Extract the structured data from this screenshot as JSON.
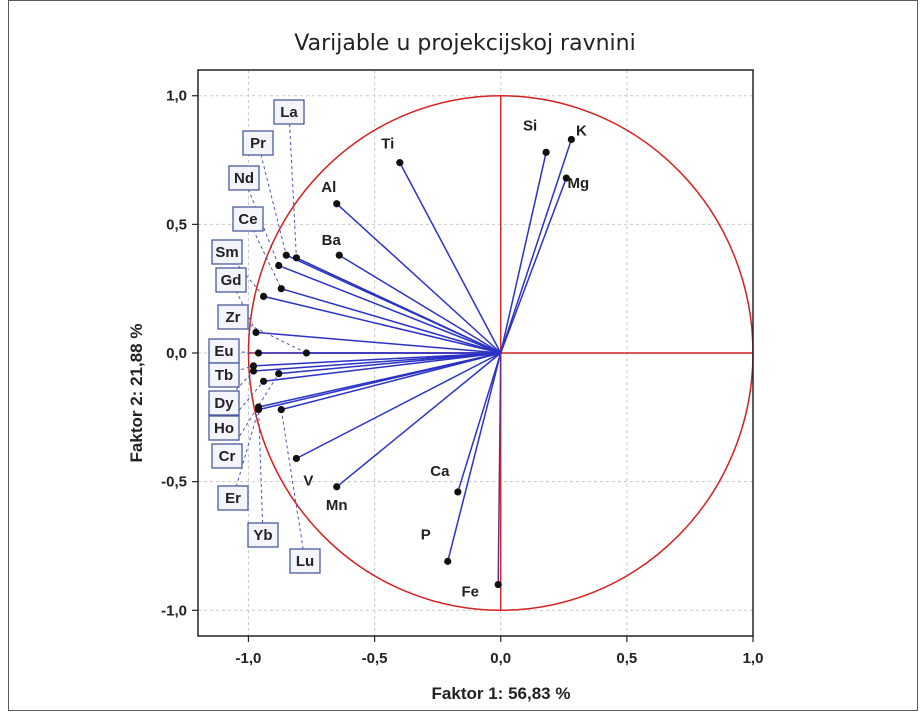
{
  "chart_data": {
    "type": "scatter",
    "title": "Varijable u projekcijskoj ravnini",
    "xlabel": "Faktor 1: 56,83 %",
    "ylabel": "Faktor 2: 21,88 %",
    "xlim": [
      -1.2,
      1.0
    ],
    "ylim": [
      -1.1,
      1.1
    ],
    "xticks": [
      -1.0,
      -0.5,
      0.0,
      0.5,
      1.0
    ],
    "xtick_labels": [
      "-1,0",
      "-0,5",
      "0,0",
      "0,5",
      "1,0"
    ],
    "yticks": [
      1.0,
      0.5,
      0.0,
      -0.5,
      -1.0
    ],
    "ytick_labels": [
      "1,0",
      "0,5",
      "0,0",
      "-0,5",
      "-1,0"
    ],
    "grid": true,
    "unit_circle": true,
    "colors": {
      "vector": "#2a33c4",
      "circle": "#d42222",
      "point": "#111111",
      "box_border": "#4a5a9a",
      "box_fill": "#f4f5fb"
    },
    "points": [
      {
        "name": "Si",
        "x": 0.18,
        "y": 0.78,
        "boxed": false
      },
      {
        "name": "K",
        "x": 0.28,
        "y": 0.83,
        "boxed": false
      },
      {
        "name": "Mg",
        "x": 0.26,
        "y": 0.68,
        "boxed": false
      },
      {
        "name": "Ti",
        "x": -0.4,
        "y": 0.74,
        "boxed": false
      },
      {
        "name": "Al",
        "x": -0.65,
        "y": 0.58,
        "boxed": false
      },
      {
        "name": "Ba",
        "x": -0.64,
        "y": 0.38,
        "boxed": false
      },
      {
        "name": "V",
        "x": -0.81,
        "y": -0.41,
        "boxed": false
      },
      {
        "name": "Mn",
        "x": -0.65,
        "y": -0.52,
        "boxed": false
      },
      {
        "name": "Ca",
        "x": -0.17,
        "y": -0.54,
        "boxed": false
      },
      {
        "name": "P",
        "x": -0.21,
        "y": -0.81,
        "boxed": false
      },
      {
        "name": "Fe",
        "x": -0.01,
        "y": -0.9,
        "boxed": false
      },
      {
        "name": "La",
        "x": -0.81,
        "y": 0.37,
        "boxed": true
      },
      {
        "name": "Pr",
        "x": -0.85,
        "y": 0.38,
        "boxed": true
      },
      {
        "name": "Nd",
        "x": -0.88,
        "y": 0.34,
        "boxed": true
      },
      {
        "name": "Ce",
        "x": -0.87,
        "y": 0.25,
        "boxed": true
      },
      {
        "name": "Sm",
        "x": -0.94,
        "y": 0.22,
        "boxed": true
      },
      {
        "name": "Gd",
        "x": -0.97,
        "y": 0.08,
        "boxed": true
      },
      {
        "name": "Zr",
        "x": -0.77,
        "y": 0.0,
        "boxed": true
      },
      {
        "name": "Eu",
        "x": -0.96,
        "y": 0.0,
        "boxed": true
      },
      {
        "name": "Tb",
        "x": -0.98,
        "y": -0.05,
        "boxed": true
      },
      {
        "name": "Dy",
        "x": -0.98,
        "y": -0.07,
        "boxed": true
      },
      {
        "name": "Ho",
        "x": -0.94,
        "y": -0.11,
        "boxed": true
      },
      {
        "name": "Cr",
        "x": -0.88,
        "y": -0.08,
        "boxed": true
      },
      {
        "name": "Er",
        "x": -0.96,
        "y": -0.22,
        "boxed": true
      },
      {
        "name": "Yb",
        "x": -0.96,
        "y": -0.21,
        "boxed": true
      },
      {
        "name": "Lu",
        "x": -0.87,
        "y": -0.22,
        "boxed": true
      }
    ]
  }
}
